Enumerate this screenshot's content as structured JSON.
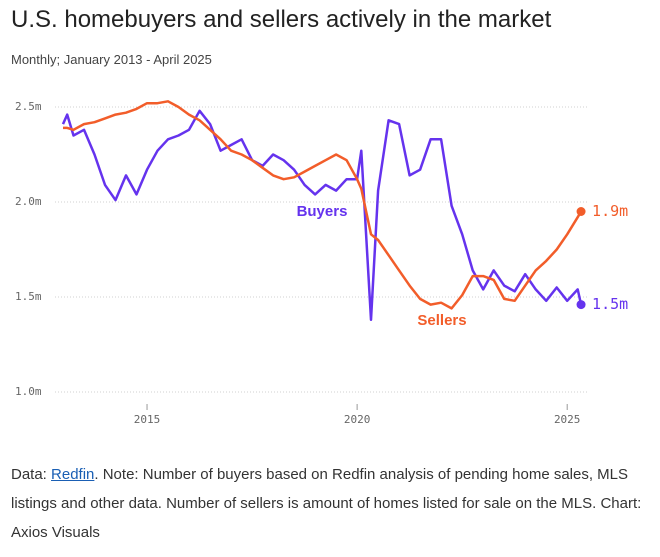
{
  "chart_data": {
    "type": "line",
    "title": "U.S. homebuyers and sellers actively in the market",
    "subtitle": "Monthly; January 2013 - April 2025",
    "x": [
      2013,
      2013.1,
      2013.25,
      2013.5,
      2013.75,
      2014,
      2014.25,
      2014.5,
      2014.75,
      2015,
      2015.25,
      2015.5,
      2015.75,
      2016,
      2016.25,
      2016.5,
      2016.75,
      2017,
      2017.25,
      2017.5,
      2017.75,
      2018,
      2018.25,
      2018.5,
      2018.75,
      2019,
      2019.25,
      2019.5,
      2019.75,
      2020,
      2020.1,
      2020.33,
      2020.5,
      2020.75,
      2021,
      2021.25,
      2021.5,
      2021.75,
      2022,
      2022.25,
      2022.5,
      2022.75,
      2023,
      2023.25,
      2023.5,
      2023.75,
      2024,
      2024.25,
      2024.5,
      2024.75,
      2025,
      2025.25,
      2025.33
    ],
    "series": [
      {
        "name": "Buyers",
        "color": "#6533ee",
        "values": [
          2.41,
          2.46,
          2.35,
          2.38,
          2.25,
          2.09,
          2.01,
          2.14,
          2.04,
          2.17,
          2.27,
          2.33,
          2.35,
          2.38,
          2.48,
          2.41,
          2.27,
          2.3,
          2.33,
          2.22,
          2.19,
          2.25,
          2.22,
          2.17,
          2.09,
          2.04,
          2.09,
          2.06,
          2.12,
          2.12,
          2.27,
          1.38,
          2.06,
          2.43,
          2.41,
          2.14,
          2.17,
          2.33,
          2.33,
          1.98,
          1.83,
          1.64,
          1.54,
          1.64,
          1.56,
          1.53,
          1.62,
          1.54,
          1.48,
          1.55,
          1.48,
          1.54,
          1.46
        ],
        "value_labels": [
          null,
          null,
          null,
          null,
          null,
          null,
          null,
          null,
          null,
          null,
          null,
          null,
          null,
          null,
          null,
          null,
          null,
          null,
          null,
          null,
          null,
          null,
          null,
          null,
          null,
          null,
          null,
          null,
          null,
          null,
          null,
          null,
          null,
          null,
          null,
          null,
          null,
          null,
          null,
          null,
          null,
          null,
          null,
          null,
          null,
          null,
          null,
          null,
          null,
          null,
          null,
          null,
          "1.5m"
        ]
      },
      {
        "name": "Sellers",
        "color": "#f25d2a",
        "values": [
          2.39,
          2.39,
          2.38,
          2.41,
          2.42,
          2.44,
          2.46,
          2.47,
          2.49,
          2.52,
          2.52,
          2.53,
          2.5,
          2.46,
          2.43,
          2.38,
          2.33,
          2.27,
          2.25,
          2.22,
          2.18,
          2.14,
          2.12,
          2.13,
          2.16,
          2.19,
          2.22,
          2.25,
          2.22,
          2.12,
          2.07,
          1.83,
          1.8,
          1.72,
          1.64,
          1.56,
          1.49,
          1.46,
          1.47,
          1.44,
          1.51,
          1.61,
          1.61,
          1.59,
          1.49,
          1.48,
          1.56,
          1.64,
          1.69,
          1.75,
          1.83,
          1.92,
          1.95
        ],
        "value_labels": [
          null,
          null,
          null,
          null,
          null,
          null,
          null,
          null,
          null,
          null,
          null,
          null,
          null,
          null,
          null,
          null,
          null,
          null,
          null,
          null,
          null,
          null,
          null,
          null,
          null,
          null,
          null,
          null,
          null,
          null,
          null,
          null,
          null,
          null,
          null,
          null,
          null,
          null,
          null,
          null,
          null,
          null,
          null,
          null,
          null,
          null,
          null,
          null,
          null,
          null,
          null,
          null,
          "1.9m"
        ]
      }
    ],
    "xlim": [
      2013,
      2025.4
    ],
    "xticks": [
      2015,
      2020,
      2025
    ],
    "ylim": [
      1.0,
      2.55
    ],
    "yticks": [
      {
        "value": 1.0,
        "label": "1.0m"
      },
      {
        "value": 1.5,
        "label": "1.5m"
      },
      {
        "value": 2.0,
        "label": "2.0m"
      },
      {
        "value": 2.5,
        "label": "2.5m"
      }
    ],
    "grid": true,
    "note": {
      "prefix": "Data:",
      "link": "Redfin",
      "text": ". Note: Number of buyers based on Redfin analysis of pending home sales, MLS listings and other data. Number of sellers is amount of homes listed for sale on the MLS. Chart: Axios Visuals"
    }
  }
}
